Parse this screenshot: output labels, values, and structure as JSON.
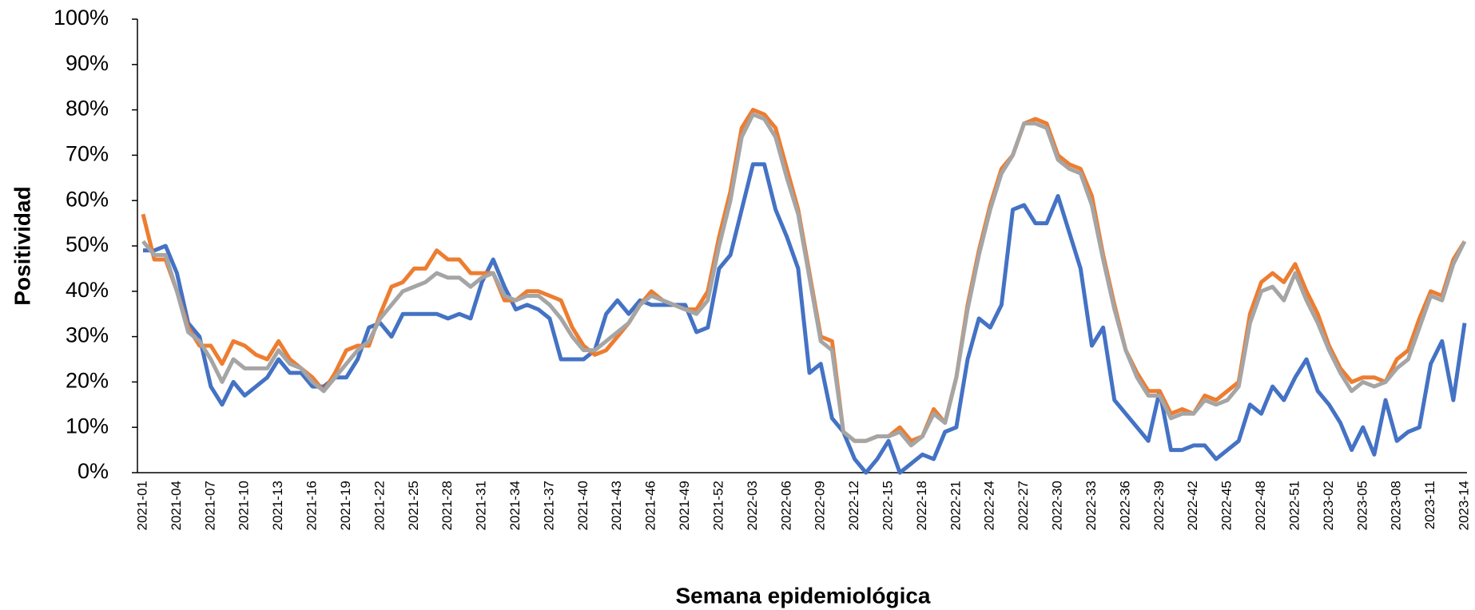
{
  "chart_data": {
    "type": "line",
    "x_label": "Semana epidemiológica",
    "y_label": "Positividad",
    "categories": [
      "2021-01",
      null,
      null,
      "2021-04",
      null,
      null,
      "2021-07",
      null,
      null,
      "2021-10",
      null,
      null,
      "2021-13",
      null,
      null,
      "2021-16",
      null,
      null,
      "2021-19",
      null,
      null,
      "2021-22",
      null,
      null,
      "2021-25",
      null,
      null,
      "2021-28",
      null,
      null,
      "2021-31",
      null,
      null,
      "2021-34",
      null,
      null,
      "2021-37",
      null,
      null,
      "2021-40",
      null,
      null,
      "2021-43",
      null,
      null,
      "2021-46",
      null,
      null,
      "2021-49",
      null,
      null,
      "2021-52",
      null,
      null,
      "2022-03",
      null,
      null,
      "2022-06",
      null,
      null,
      "2022-09",
      null,
      null,
      "2022-12",
      null,
      null,
      "2022-15",
      null,
      null,
      "2022-18",
      null,
      null,
      "2022-21",
      null,
      null,
      "2022-24",
      null,
      null,
      "2022-27",
      null,
      null,
      "2022-30",
      null,
      null,
      "2022-33",
      null,
      null,
      "2022-36",
      null,
      null,
      "2022-39",
      null,
      null,
      "2022-42",
      null,
      null,
      "2022-45",
      null,
      null,
      "2022-48",
      null,
      null,
      "2022-51",
      null,
      null,
      "2023-02",
      null,
      null,
      "2023-05",
      null,
      null,
      "2023-08",
      null,
      null,
      "2023-11",
      null,
      null,
      "2023-14"
    ],
    "series": [
      {
        "color": "#4472c4",
        "values": [
          49,
          49,
          50,
          44,
          33,
          30,
          19,
          15,
          20,
          17,
          19,
          21,
          25,
          22,
          22,
          19,
          19,
          21,
          21,
          25,
          32,
          33,
          30,
          35,
          35,
          35,
          35,
          34,
          35,
          34,
          42,
          47,
          41,
          36,
          37,
          36,
          34,
          25,
          25,
          25,
          27,
          35,
          38,
          35,
          38,
          37,
          37,
          37,
          37,
          31,
          32,
          45,
          48,
          58,
          68,
          68,
          58,
          52,
          45,
          22,
          24,
          12,
          9,
          3,
          0,
          3,
          7,
          0,
          2,
          4,
          3,
          9,
          10,
          25,
          34,
          32,
          37,
          58,
          59,
          55,
          55,
          61,
          53,
          45,
          28,
          32,
          16,
          13,
          10,
          7,
          18,
          5,
          5,
          6,
          6,
          3,
          5,
          7,
          15,
          13,
          19,
          16,
          21,
          25,
          18,
          15,
          11,
          5,
          10,
          4,
          16,
          7,
          9,
          10,
          24,
          29,
          16,
          33
        ]
      },
      {
        "color": "#ed7d31",
        "values": [
          57,
          47,
          47,
          40,
          32,
          28,
          28,
          24,
          29,
          28,
          26,
          25,
          29,
          25,
          23,
          21,
          18,
          22,
          27,
          28,
          28,
          35,
          41,
          42,
          45,
          45,
          49,
          47,
          47,
          44,
          44,
          44,
          38,
          38,
          40,
          40,
          39,
          38,
          32,
          28,
          26,
          27,
          30,
          33,
          37,
          40,
          38,
          37,
          36,
          36,
          40,
          52,
          62,
          76,
          80,
          79,
          76,
          67,
          58,
          44,
          30,
          29,
          9,
          7,
          7,
          8,
          8,
          10,
          7,
          8,
          14,
          11,
          21,
          37,
          49,
          59,
          67,
          70,
          77,
          78,
          77,
          70,
          68,
          67,
          61,
          48,
          37,
          27,
          22,
          18,
          18,
          13,
          14,
          13,
          17,
          16,
          18,
          20,
          35,
          42,
          44,
          42,
          46,
          40,
          35,
          28,
          23,
          20,
          21,
          21,
          20,
          25,
          27,
          34,
          40,
          39,
          47,
          51
        ]
      },
      {
        "color": "#a5a5a5",
        "values": [
          51,
          48,
          48,
          40,
          31,
          29,
          25,
          20,
          25,
          23,
          23,
          23,
          27,
          24,
          23,
          20,
          18,
          21,
          24,
          27,
          29,
          34,
          37,
          40,
          41,
          42,
          44,
          43,
          43,
          41,
          43,
          44,
          39,
          38,
          39,
          39,
          37,
          34,
          30,
          27,
          27,
          29,
          31,
          33,
          37,
          39,
          38,
          37,
          36,
          35,
          38,
          50,
          60,
          74,
          79,
          78,
          74,
          65,
          57,
          43,
          29,
          27,
          9,
          7,
          7,
          8,
          8,
          9,
          6,
          8,
          13,
          11,
          21,
          36,
          48,
          58,
          66,
          70,
          77,
          77,
          76,
          69,
          67,
          66,
          59,
          47,
          36,
          27,
          21,
          17,
          17,
          12,
          13,
          13,
          16,
          15,
          16,
          19,
          33,
          40,
          41,
          38,
          44,
          38,
          33,
          27,
          22,
          18,
          20,
          19,
          20,
          23,
          25,
          32,
          39,
          38,
          46,
          51
        ]
      }
    ],
    "ylim": [
      0,
      100
    ],
    "yticks": [
      {
        "value": 0,
        "label": "0%"
      },
      {
        "value": 10,
        "label": "10%"
      },
      {
        "value": 20,
        "label": "20%"
      },
      {
        "value": 30,
        "label": "30%"
      },
      {
        "value": 40,
        "label": "40%"
      },
      {
        "value": 50,
        "label": "50%"
      },
      {
        "value": 60,
        "label": "60%"
      },
      {
        "value": 70,
        "label": "70%"
      },
      {
        "value": 80,
        "label": "80%"
      },
      {
        "value": 90,
        "label": "90%"
      },
      {
        "value": 100,
        "label": "100%"
      }
    ]
  }
}
